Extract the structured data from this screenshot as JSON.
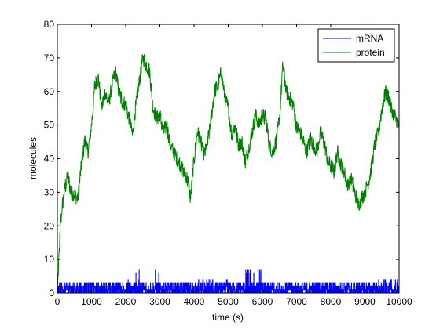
{
  "chart_data": {
    "type": "line",
    "title": "",
    "xlabel": "time (s)",
    "ylabel": "molecules",
    "xlim": [
      0,
      10000
    ],
    "ylim": [
      0,
      80
    ],
    "xticks": [
      0,
      1000,
      2000,
      3000,
      4000,
      5000,
      6000,
      7000,
      8000,
      9000,
      10000
    ],
    "yticks": [
      0,
      10,
      20,
      30,
      40,
      50,
      60,
      70,
      80
    ],
    "grid": false,
    "legend_position": "top-right",
    "series": [
      {
        "name": "mRNA",
        "color": "#0000ff",
        "style": "noisy integer counts fluctuating between 0 and 5, occasional peaks of 7",
        "x": [
          0,
          500,
          1000,
          1500,
          2000,
          2300,
          2500,
          3000,
          3500,
          4000,
          4500,
          5000,
          5500,
          5700,
          6000,
          6500,
          7000,
          7500,
          8000,
          8500,
          9000,
          9500,
          10000
        ],
        "values": [
          2,
          3,
          2,
          3,
          2,
          4,
          7,
          3,
          2,
          3,
          4,
          2,
          3,
          7,
          2,
          3,
          2,
          3,
          2,
          3,
          3,
          4,
          2
        ]
      },
      {
        "name": "protein",
        "color": "#008000",
        "style": "stochastic trajectory",
        "x": [
          0,
          100,
          200,
          300,
          400,
          500,
          600,
          700,
          800,
          900,
          1000,
          1100,
          1200,
          1300,
          1400,
          1500,
          1600,
          1700,
          1800,
          1900,
          2000,
          2100,
          2200,
          2300,
          2400,
          2500,
          2600,
          2700,
          2800,
          2900,
          3000,
          3100,
          3200,
          3300,
          3400,
          3500,
          3600,
          3700,
          3800,
          3900,
          4000,
          4100,
          4200,
          4300,
          4400,
          4500,
          4600,
          4700,
          4800,
          4900,
          5000,
          5100,
          5200,
          5300,
          5400,
          5500,
          5600,
          5700,
          5800,
          5900,
          6000,
          6100,
          6200,
          6300,
          6400,
          6500,
          6600,
          6700,
          6800,
          6900,
          7000,
          7100,
          7200,
          7300,
          7400,
          7500,
          7600,
          7700,
          7800,
          7900,
          8000,
          8100,
          8200,
          8300,
          8400,
          8500,
          8600,
          8700,
          8800,
          8900,
          9000,
          9100,
          9200,
          9300,
          9400,
          9500,
          9600,
          9700,
          9800,
          9900,
          10000
        ],
        "values": [
          0,
          22,
          30,
          35,
          30,
          29,
          28,
          38,
          45,
          42,
          50,
          62,
          64,
          55,
          60,
          56,
          62,
          66,
          60,
          57,
          56,
          52,
          47,
          56,
          63,
          70,
          68,
          66,
          55,
          52,
          53,
          48,
          50,
          44,
          42,
          40,
          38,
          36,
          34,
          28,
          40,
          48,
          45,
          41,
          45,
          52,
          60,
          62,
          66,
          58,
          55,
          47,
          50,
          44,
          45,
          39,
          43,
          48,
          53,
          50,
          53,
          52,
          44,
          42,
          45,
          52,
          68,
          60,
          58,
          56,
          49,
          48,
          45,
          42,
          46,
          44,
          42,
          48,
          45,
          40,
          38,
          36,
          42,
          38,
          36,
          32,
          34,
          30,
          26,
          28,
          30,
          33,
          38,
          45,
          48,
          55,
          60,
          58,
          54,
          52,
          50
        ]
      }
    ]
  }
}
